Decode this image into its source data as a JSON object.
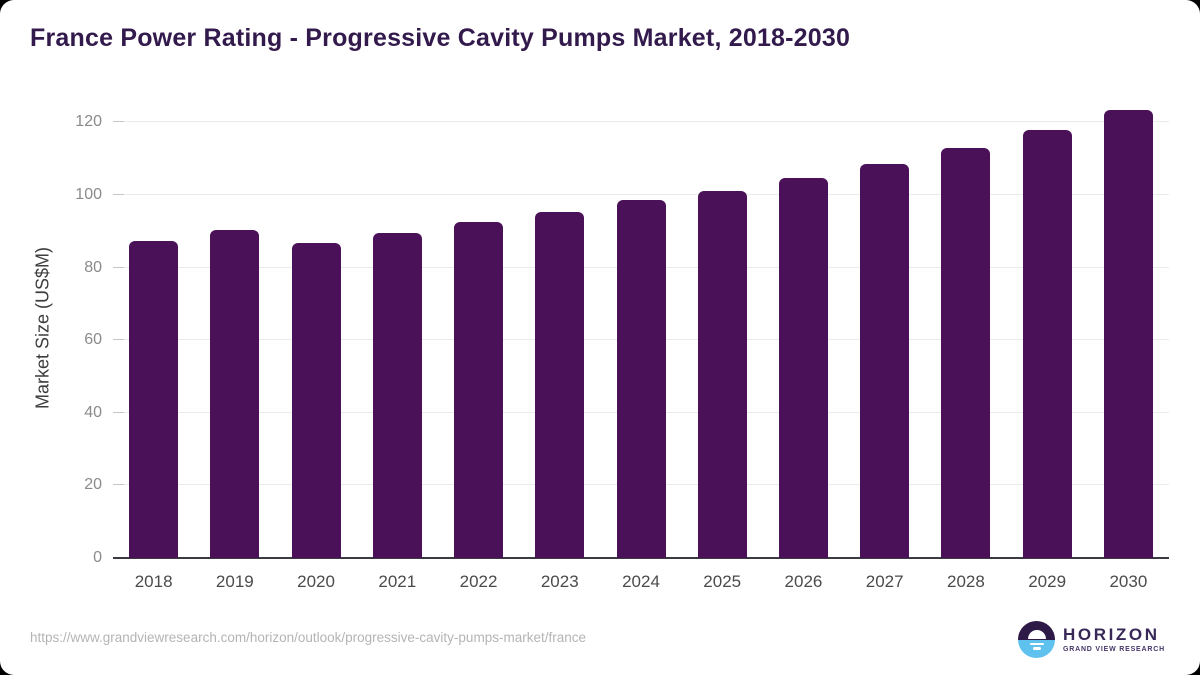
{
  "page": {
    "title": "France Power Rating - Progressive Cavity Pumps Market, 2018-2030"
  },
  "chart_data": {
    "type": "bar",
    "title": "France Power Rating - Progressive Cavity Pumps Market, 2018-2030",
    "categories": [
      "2018",
      "2019",
      "2020",
      "2021",
      "2022",
      "2023",
      "2024",
      "2025",
      "2026",
      "2027",
      "2028",
      "2029",
      "2030"
    ],
    "values": [
      87.4,
      90.4,
      86.7,
      89.6,
      92.6,
      95.2,
      98.6,
      101.1,
      104.7,
      108.6,
      113.0,
      117.9,
      123.3
    ],
    "series_name": "Market Size",
    "xlabel": "",
    "ylabel": "Market Size (US$M)",
    "yticks": [
      0,
      20,
      40,
      60,
      80,
      100,
      120
    ],
    "ylim": [
      0,
      120
    ],
    "grid": "horizontal",
    "legend_position": "none",
    "bar_color": "#4a1158"
  },
  "colors": {
    "title_text": "#331a4d",
    "bar": "#4a1158",
    "axis_line": "#3a3a40",
    "gridline": "#ebebeb",
    "y_tick_text": "#8a8a8a",
    "x_tick_text": "#4b4b4b",
    "url_text": "#b4b4b4",
    "logo_dark_half": "#2e1a47",
    "logo_blue_half": "#5ec1ee",
    "logo_name_text": "#372858"
  },
  "footer": {
    "source_url": "https://www.grandviewresearch.com/horizon/outlook/progressive-cavity-pumps-market/france",
    "logo": {
      "name": "HORIZON",
      "subtitle": "GRAND VIEW RESEARCH"
    }
  }
}
